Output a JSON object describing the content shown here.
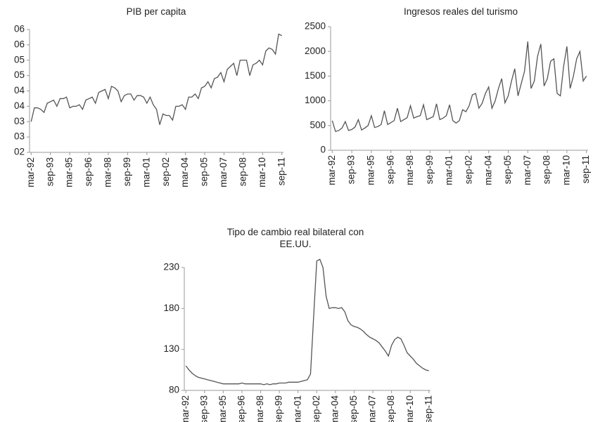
{
  "chart_data": [
    {
      "type": "line",
      "title": "PIB per capita",
      "categories": [
        "mar-92",
        null,
        null,
        null,
        null,
        null,
        "sep-93",
        null,
        null,
        null,
        null,
        null,
        "mar-95",
        null,
        null,
        null,
        null,
        null,
        "sep-96",
        null,
        null,
        null,
        null,
        null,
        "mar-98",
        null,
        null,
        null,
        null,
        null,
        "sep-99",
        null,
        null,
        null,
        null,
        null,
        "mar-01",
        null,
        null,
        null,
        null,
        null,
        "sep-02",
        null,
        null,
        null,
        null,
        null,
        "mar-04",
        null,
        null,
        null,
        null,
        null,
        "sep-05",
        null,
        null,
        null,
        null,
        null,
        "mar-07",
        null,
        null,
        null,
        null,
        null,
        "sep-08",
        null,
        null,
        null,
        null,
        null,
        "mar-10",
        null,
        null,
        null,
        null,
        null,
        "sep-11"
      ],
      "values": [
        3.0,
        3.45,
        3.45,
        3.4,
        3.3,
        3.6,
        3.65,
        3.7,
        3.5,
        3.75,
        3.75,
        3.8,
        3.45,
        3.5,
        3.5,
        3.55,
        3.4,
        3.7,
        3.75,
        3.8,
        3.6,
        3.95,
        4.0,
        4.05,
        3.75,
        4.15,
        4.1,
        4.0,
        3.65,
        3.85,
        3.9,
        3.9,
        3.7,
        3.85,
        3.85,
        3.8,
        3.6,
        3.8,
        3.55,
        3.4,
        2.9,
        3.25,
        3.2,
        3.2,
        3.05,
        3.5,
        3.5,
        3.55,
        3.4,
        3.8,
        3.8,
        3.9,
        3.75,
        4.1,
        4.15,
        4.3,
        4.1,
        4.4,
        4.45,
        4.6,
        4.3,
        4.7,
        4.8,
        4.9,
        4.5,
        5.0,
        5.0,
        5.0,
        4.5,
        4.85,
        4.9,
        5.0,
        4.85,
        5.3,
        5.4,
        5.35,
        5.2,
        5.85,
        5.8
      ],
      "color": "#555555",
      "ylim": [
        2,
        6
      ],
      "yticks": [
        {
          "value": 2,
          "label": "02"
        },
        {
          "value": 2.5,
          "label": "03"
        },
        {
          "value": 3,
          "label": "03"
        },
        {
          "value": 3.5,
          "label": "04"
        },
        {
          "value": 4,
          "label": "04"
        },
        {
          "value": 4.5,
          "label": "05"
        },
        {
          "value": 5,
          "label": "05"
        },
        {
          "value": 5.5,
          "label": "06"
        },
        {
          "value": 6,
          "label": "06"
        }
      ],
      "grid": false
    },
    {
      "type": "line",
      "title": "Ingresos reales del turismo",
      "categories": [
        "mar-92",
        null,
        null,
        null,
        null,
        null,
        "sep-93",
        null,
        null,
        null,
        null,
        null,
        "mar-95",
        null,
        null,
        null,
        null,
        null,
        "sep-96",
        null,
        null,
        null,
        null,
        null,
        "mar-98",
        null,
        null,
        null,
        null,
        null,
        "sep-99",
        null,
        null,
        null,
        null,
        null,
        "mar-01",
        null,
        null,
        null,
        null,
        null,
        "sep-02",
        null,
        null,
        null,
        null,
        null,
        "mar-04",
        null,
        null,
        null,
        null,
        null,
        "sep-05",
        null,
        null,
        null,
        null,
        null,
        "mar-07",
        null,
        null,
        null,
        null,
        null,
        "sep-08",
        null,
        null,
        null,
        null,
        null,
        "mar-10",
        null,
        null,
        null,
        null,
        null,
        "sep-11"
      ],
      "values": [
        600,
        380,
        400,
        450,
        580,
        400,
        420,
        470,
        620,
        410,
        450,
        500,
        700,
        460,
        480,
        520,
        800,
        520,
        560,
        600,
        850,
        580,
        620,
        660,
        900,
        650,
        680,
        700,
        920,
        620,
        650,
        680,
        940,
        620,
        650,
        700,
        920,
        600,
        550,
        600,
        820,
        780,
        900,
        1120,
        1150,
        850,
        950,
        1150,
        1280,
        850,
        1000,
        1250,
        1450,
        960,
        1100,
        1400,
        1650,
        1100,
        1350,
        1600,
        2200,
        1250,
        1400,
        1900,
        2150,
        1300,
        1450,
        1800,
        1850,
        1150,
        1100,
        1700,
        2100,
        1250,
        1500,
        1850,
        2000,
        1400,
        1500
      ],
      "color": "#555555",
      "ylim": [
        0,
        2500
      ],
      "yticks": [
        0,
        500,
        1000,
        1500,
        2000,
        2500
      ],
      "grid": false
    },
    {
      "type": "line",
      "title": "Tipo de cambio real bilateral con EE.UU.",
      "categories": [
        "mar-92",
        null,
        null,
        null,
        null,
        null,
        "sep-93",
        null,
        null,
        null,
        null,
        null,
        "mar-95",
        null,
        null,
        null,
        null,
        null,
        "sep-96",
        null,
        null,
        null,
        null,
        null,
        "mar-98",
        null,
        null,
        null,
        null,
        null,
        "sep-99",
        null,
        null,
        null,
        null,
        null,
        "mar-01",
        null,
        null,
        null,
        null,
        null,
        "sep-02",
        null,
        null,
        null,
        null,
        null,
        "mar-04",
        null,
        null,
        null,
        null,
        null,
        "sep-05",
        null,
        null,
        null,
        null,
        null,
        "mar-07",
        null,
        null,
        null,
        null,
        null,
        "sep-08",
        null,
        null,
        null,
        null,
        null,
        "mar-10",
        null,
        null,
        null,
        null,
        null,
        "sep-11"
      ],
      "values": [
        110,
        105,
        101,
        98,
        96,
        95,
        94,
        93,
        92,
        91,
        90,
        89,
        88,
        88,
        88,
        88,
        88,
        88,
        89,
        88,
        88,
        88,
        88,
        88,
        88,
        87,
        88,
        87,
        88,
        88,
        89,
        89,
        89,
        90,
        90,
        90,
        90,
        91,
        92,
        93,
        100,
        170,
        238,
        240,
        230,
        195,
        180,
        181,
        181,
        180,
        181,
        176,
        165,
        160,
        158,
        157,
        155,
        152,
        148,
        145,
        143,
        141,
        138,
        133,
        128,
        122,
        135,
        142,
        145,
        143,
        135,
        126,
        122,
        118,
        113,
        110,
        107,
        105,
        104
      ],
      "color": "#555555",
      "ylim": [
        80,
        230
      ],
      "yticks": [
        80,
        130,
        180,
        230
      ],
      "grid": false
    }
  ]
}
